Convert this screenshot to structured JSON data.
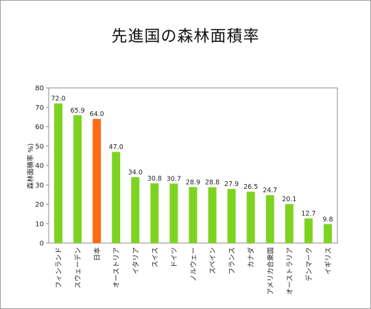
{
  "chart_data": {
    "type": "bar",
    "title": "先進国の森林面積率",
    "ylabel": "森林面積率 %)",
    "xlabel": "",
    "ylim": [
      0,
      80
    ],
    "yticks": [
      0,
      10,
      20,
      30,
      40,
      50,
      60,
      70,
      80
    ],
    "grid": false,
    "categories": [
      "フィンランド",
      "スウェーデン",
      "日本",
      "オーストリア",
      "イタリア",
      "スイス",
      "ドイツ",
      "ノルウェー",
      "スペイン",
      "フランス",
      "カナダ",
      "アメリカ合衆国",
      "オーストラリア",
      "デンマーク",
      "イギリス"
    ],
    "values": [
      72.0,
      65.9,
      64.0,
      47.0,
      34.0,
      30.8,
      30.7,
      28.9,
      28.8,
      27.9,
      26.5,
      24.7,
      20.1,
      12.7,
      9.8
    ],
    "value_labels": [
      "72.0",
      "65.9",
      "64.0",
      "47.0",
      "34.0",
      "30.8",
      "30.7",
      "28.9",
      "28.8",
      "27.9",
      "26.5",
      "24.7",
      "20.1",
      "12.7",
      "9.8"
    ],
    "highlight_category": "日本",
    "colors": {
      "bar": "#7ed321",
      "highlight": "#ff6a13",
      "axis": "#888888"
    }
  }
}
